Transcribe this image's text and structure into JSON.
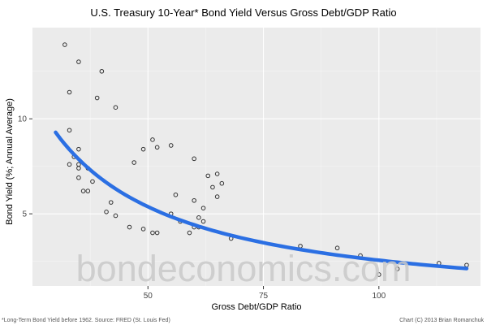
{
  "chart_data": {
    "type": "scatter",
    "title": "U.S. Treasury 10-Year* Bond Yield Versus Gross Debt/GDP Ratio",
    "xlabel": "Gross Debt/GDP Ratio",
    "ylabel": "Bond Yield (%; Annual Average)",
    "watermark": "bondeconomics.com",
    "footnote_left": "*Long-Term Bond Yield before 1962. Source: FRED (St. Louis Fed)",
    "footnote_right": "Chart (C) 2013 Brian Romanchuk",
    "xlim": [
      25,
      122
    ],
    "ylim": [
      1.2,
      14.8
    ],
    "x_ticks": [
      50,
      75,
      100
    ],
    "y_ticks": [
      5,
      10
    ],
    "x_minor_gridlines": [
      37.5,
      62.5,
      87.5,
      112.5
    ],
    "y_minor_gridlines": [
      2.5,
      7.5,
      12.5
    ],
    "grid": true,
    "legend": "none",
    "points": [
      [
        32,
        13.9
      ],
      [
        33,
        11.4
      ],
      [
        33,
        9.4
      ],
      [
        33,
        7.6
      ],
      [
        34,
        8.0
      ],
      [
        35,
        13.0
      ],
      [
        35,
        8.4
      ],
      [
        35,
        7.6
      ],
      [
        35,
        7.4
      ],
      [
        35,
        6.9
      ],
      [
        36,
        6.2
      ],
      [
        37,
        7.4
      ],
      [
        37,
        6.2
      ],
      [
        38,
        6.7
      ],
      [
        39,
        11.1
      ],
      [
        40,
        12.5
      ],
      [
        41,
        5.1
      ],
      [
        42,
        5.6
      ],
      [
        43,
        10.6
      ],
      [
        43,
        4.9
      ],
      [
        46,
        4.3
      ],
      [
        47,
        7.7
      ],
      [
        49,
        8.4
      ],
      [
        49,
        4.2
      ],
      [
        51,
        8.9
      ],
      [
        51,
        4.0
      ],
      [
        52,
        8.5
      ],
      [
        52,
        4.0
      ],
      [
        55,
        8.6
      ],
      [
        55,
        5.0
      ],
      [
        56,
        6.0
      ],
      [
        57,
        4.6
      ],
      [
        59,
        4.0
      ],
      [
        60,
        7.9
      ],
      [
        60,
        5.7
      ],
      [
        60,
        4.3
      ],
      [
        61,
        4.3
      ],
      [
        61,
        4.8
      ],
      [
        62,
        5.3
      ],
      [
        62,
        4.6
      ],
      [
        63,
        7.0
      ],
      [
        64,
        6.4
      ],
      [
        65,
        7.1
      ],
      [
        65,
        5.9
      ],
      [
        66,
        6.6
      ],
      [
        68,
        3.7
      ],
      [
        83,
        3.3
      ],
      [
        91,
        3.2
      ],
      [
        96,
        2.8
      ],
      [
        100,
        1.8
      ],
      [
        104,
        2.1
      ],
      [
        113,
        2.4
      ],
      [
        119,
        2.3
      ]
    ],
    "smooth_fit": {
      "type": "power",
      "a": 356,
      "b": -1.072,
      "x_start": 30,
      "x_end": 119
    },
    "colors": {
      "panel": "#ebebeb",
      "grid_major": "#ffffff",
      "grid_minor": "#f5f5f5",
      "point_stroke": "#333333",
      "smooth_line": "#2b6fe3",
      "tick_label": "#444444",
      "tick_mark": "#333333"
    }
  }
}
